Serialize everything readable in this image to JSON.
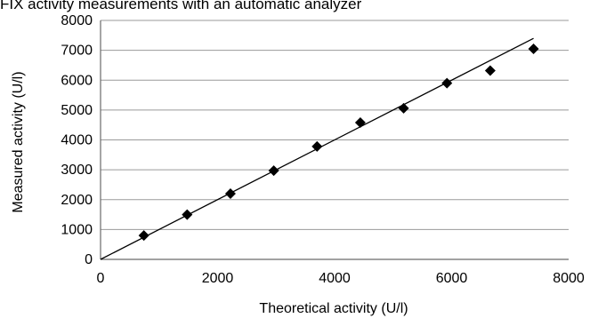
{
  "chart_data": {
    "type": "scatter",
    "title": "FIX activity measurements with an automatic analyzer",
    "xlabel": "Theoretical activity (U/l)",
    "ylabel": "Measured activity (U/l)",
    "xlim": [
      0,
      8000
    ],
    "ylim": [
      0,
      8000
    ],
    "x_ticks": [
      "0",
      "2000",
      "4000",
      "6000",
      "8000"
    ],
    "y_ticks": [
      "0",
      "1000",
      "2000",
      "3000",
      "4000",
      "5000",
      "6000",
      "7000",
      "8000"
    ],
    "grid": "horizontal",
    "legend": "none",
    "marker": "diamond",
    "colors": {
      "points": "#000000",
      "grid": "#9a9a9a",
      "fit_line": "#000000"
    },
    "series": [
      {
        "x": [
          740,
          1480,
          2220,
          2960,
          3700,
          4440,
          5180,
          5920,
          6660,
          7400
        ],
        "y": [
          800,
          1500,
          2200,
          2970,
          3780,
          4580,
          5060,
          5900,
          6320,
          7050
        ]
      }
    ],
    "fit_line": {
      "x": [
        0,
        7400
      ],
      "y": [
        0,
        7400
      ]
    }
  }
}
